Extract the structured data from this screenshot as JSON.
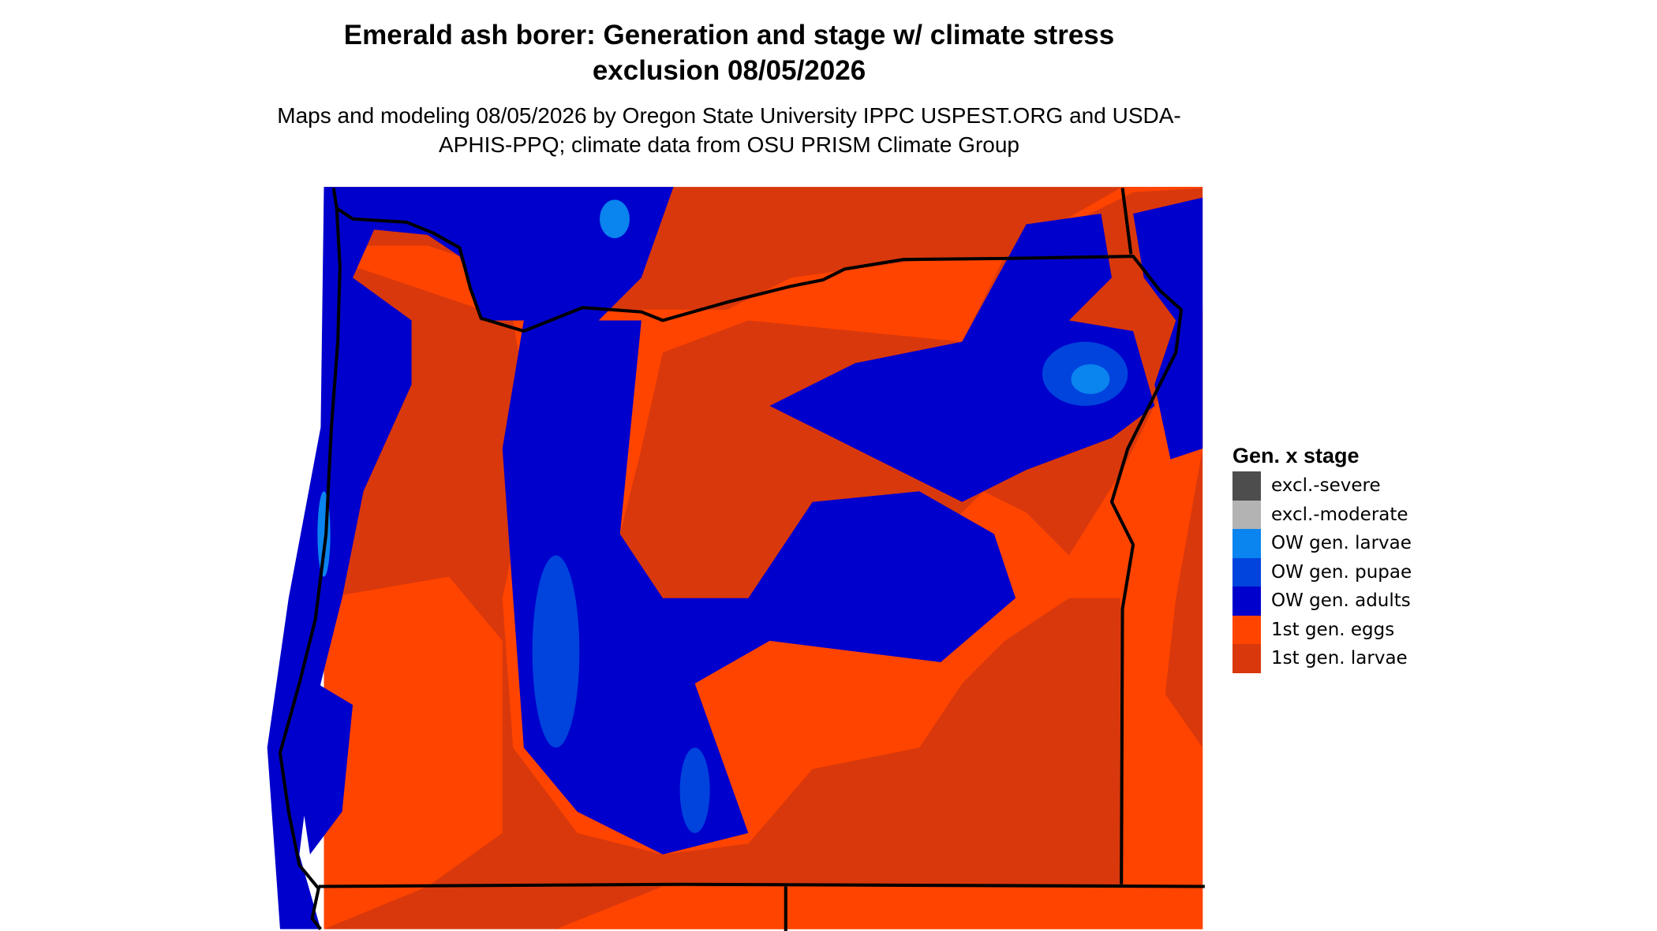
{
  "title": "Emerald ash borer: Generation and stage w/ climate stress exclusion 08/05/2026",
  "subtitle": "Maps and modeling 08/05/2026 by Oregon State University IPPC USPEST.ORG and USDA-APHIS-PPQ; climate data from OSU PRISM Climate Group",
  "legend": {
    "title": "Gen. x stage",
    "items": [
      {
        "label": "excl.-severe",
        "color": "#4d4d4d"
      },
      {
        "label": "excl.-moderate",
        "color": "#b3b3b3"
      },
      {
        "label": "OW gen. larvae",
        "color": "#0a84ee"
      },
      {
        "label": "OW gen. pupae",
        "color": "#0044dd"
      },
      {
        "label": "OW gen. adults",
        "color": "#0000cd"
      },
      {
        "label": "1st gen. eggs",
        "color": "#ff4400"
      },
      {
        "label": "1st gen. larvae",
        "color": "#d9380c"
      }
    ]
  }
}
